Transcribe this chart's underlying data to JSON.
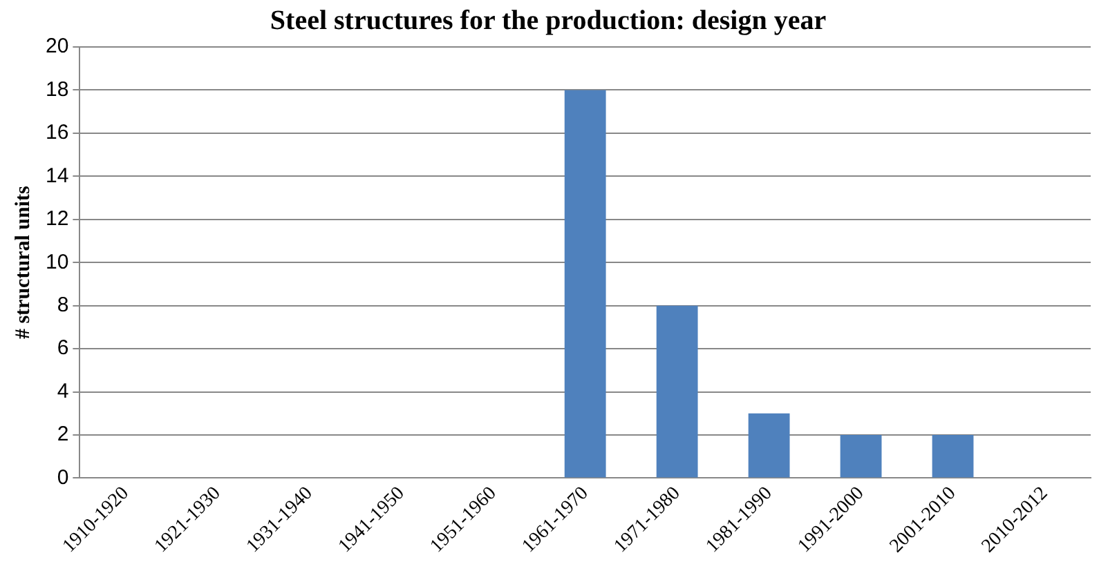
{
  "chart_data": {
    "type": "bar",
    "title": "Steel structures for the production: design year",
    "ylabel": "# structural units",
    "categories": [
      "1910-1920",
      "1921-1930",
      "1931-1940",
      "1941-1950",
      "1951-1960",
      "1961-1970",
      "1971-1980",
      "1981-1990",
      "1991-2000",
      "2001-2010",
      "2010-2012"
    ],
    "values": [
      0,
      0,
      0,
      0,
      0,
      18,
      8,
      3,
      2,
      2,
      0
    ],
    "color": "#4f81bd",
    "ylim": [
      0,
      20
    ],
    "yticks": [
      0,
      2,
      4,
      6,
      8,
      10,
      12,
      14,
      16,
      18,
      20
    ],
    "grid": "y",
    "legend": false
  }
}
